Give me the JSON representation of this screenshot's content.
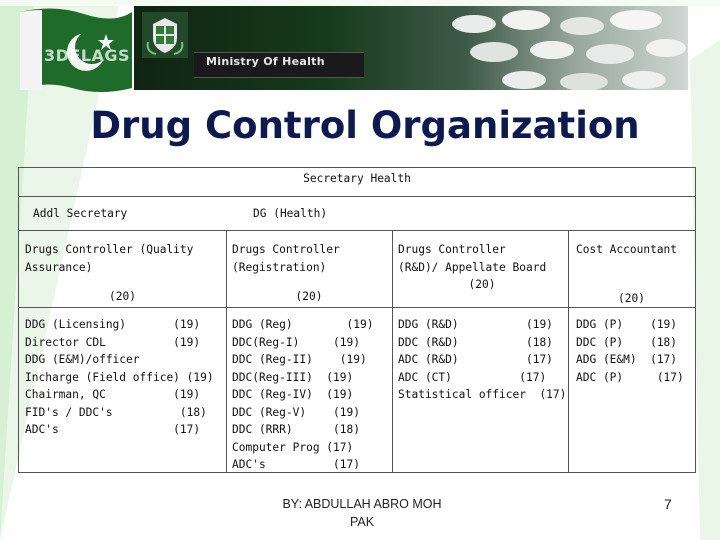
{
  "header": {
    "watermark": "3DFLAGS",
    "banner_title": "Ministry Of Health"
  },
  "title": "Drug Control Organization",
  "org": {
    "top": "Secretary Health",
    "addl_secretary": "Addl Secretary",
    "dg": "DG (Health)",
    "columns": [
      {
        "heading": [
          "Drugs Controller (Quality",
          "Assurance)"
        ],
        "grade": "(20)",
        "items": [
          "DDG (Licensing)       (19)",
          "Director CDL          (19)",
          "DDG (E&M)/officer",
          "Incharge (Field office) (19)",
          "Chairman, QC          (19)",
          "FID's / DDC's          (18)",
          "ADC's                 (17)"
        ]
      },
      {
        "heading": [
          "Drugs Controller",
          "(Registration)"
        ],
        "grade": "(20)",
        "items": [
          "DDG (Reg)        (19)",
          "DDC(Reg-I)     (19)",
          "DDC (Reg-II)    (19)",
          "DDC(Reg-III)  (19)",
          "DDC (Reg-IV)  (19)",
          "DDC (Reg-V)    (19)",
          "DDC (RRR)      (18)",
          "Computer Prog (17)",
          "ADC's          (17)"
        ]
      },
      {
        "heading": [
          "Drugs Controller",
          "(R&D)/ Appellate Board"
        ],
        "grade": "(20)",
        "items": [
          "DDG (R&D)          (19)",
          "DDC (R&D)          (18)",
          "ADC (R&D)          (17)",
          "ADC (CT)          (17)",
          "Statistical officer  (17)"
        ]
      },
      {
        "heading": [
          "Cost Accountant"
        ],
        "grade": "(20)",
        "items": [
          "DDG (P)    (19)",
          "DDC (P)    (18)",
          "ADG (E&M)  (17)",
          "ADC (P)     (17)"
        ]
      }
    ]
  },
  "footer": {
    "credit_line1": "BY: ABDULLAH ABRO MOH",
    "credit_line2": "PAK",
    "page_number": "7"
  },
  "colors": {
    "title": "#0d1a52",
    "flag_green": "#1f6b2a",
    "deco_green": "#c9ecc7"
  }
}
